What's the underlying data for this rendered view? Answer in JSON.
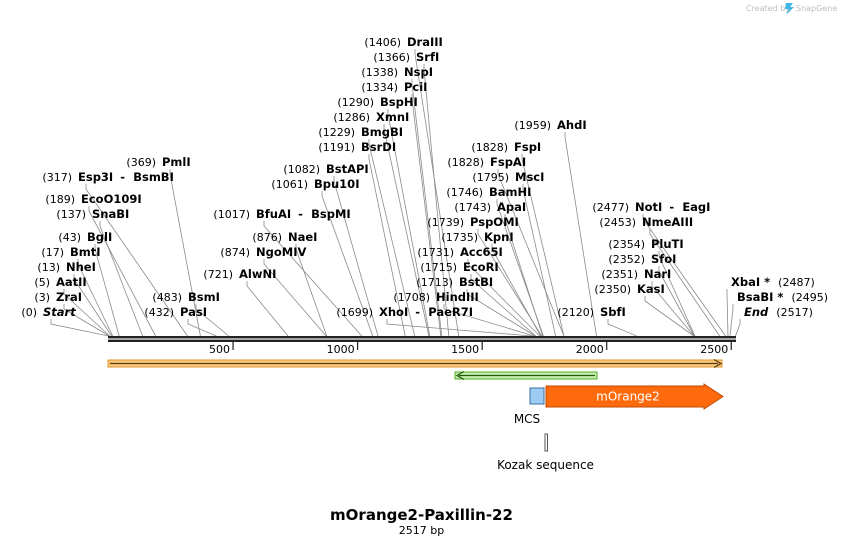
{
  "created_by": "Created by",
  "brand": "SnapGene",
  "title": "mOrange2-Paxillin-22",
  "subtitle": "2517 bp",
  "sequence_length": 2517,
  "ruler_ticks": [
    {
      "value": 500,
      "label": "500"
    },
    {
      "value": 1000,
      "label": "1000"
    },
    {
      "value": 1500,
      "label": "1500"
    },
    {
      "value": 2000,
      "label": "2000"
    },
    {
      "value": 2500,
      "label": "2500"
    }
  ],
  "cut_sites": [
    {
      "pos": 0,
      "pos_label": "(0)",
      "name": "Start",
      "italic": true
    },
    {
      "pos": 3,
      "pos_label": "(3)",
      "name": "ZraI"
    },
    {
      "pos": 5,
      "pos_label": "(5)",
      "name": "AatII"
    },
    {
      "pos": 13,
      "pos_label": "(13)",
      "name": "NheI"
    },
    {
      "pos": 17,
      "pos_label": "(17)",
      "name": "BmtI"
    },
    {
      "pos": 43,
      "pos_label": "(43)",
      "name": "BglI"
    },
    {
      "pos": 137,
      "pos_label": "(137)",
      "name": "SnaBI"
    },
    {
      "pos": 189,
      "pos_label": "(189)",
      "name": "EcoO109I"
    },
    {
      "pos": 317,
      "pos_label": "(317)",
      "name": "Esp3I",
      "name2": "BsmBI"
    },
    {
      "pos": 369,
      "pos_label": "(369)",
      "name": "PmlI"
    },
    {
      "pos": 432,
      "pos_label": "(432)",
      "name": "PasI"
    },
    {
      "pos": 483,
      "pos_label": "(483)",
      "name": "BsmI"
    },
    {
      "pos": 721,
      "pos_label": "(721)",
      "name": "AlwNI"
    },
    {
      "pos": 874,
      "pos_label": "(874)",
      "name": "NgoMIV"
    },
    {
      "pos": 876,
      "pos_label": "(876)",
      "name": "NaeI"
    },
    {
      "pos": 1017,
      "pos_label": "(1017)",
      "name": "BfuAI",
      "name2": "BspMI"
    },
    {
      "pos": 1061,
      "pos_label": "(1061)",
      "name": "Bpu10I"
    },
    {
      "pos": 1082,
      "pos_label": "(1082)",
      "name": "BstAPI"
    },
    {
      "pos": 1191,
      "pos_label": "(1191)",
      "name": "BsrDI"
    },
    {
      "pos": 1229,
      "pos_label": "(1229)",
      "name": "BmgBI"
    },
    {
      "pos": 1286,
      "pos_label": "(1286)",
      "name": "XmnI"
    },
    {
      "pos": 1290,
      "pos_label": "(1290)",
      "name": "BspHI"
    },
    {
      "pos": 1334,
      "pos_label": "(1334)",
      "name": "PciI"
    },
    {
      "pos": 1338,
      "pos_label": "(1338)",
      "name": "NspI"
    },
    {
      "pos": 1366,
      "pos_label": "(1366)",
      "name": "SrfI"
    },
    {
      "pos": 1406,
      "pos_label": "(1406)",
      "name": "DraIII"
    },
    {
      "pos": 1699,
      "pos_label": "(1699)",
      "name": "XhoI",
      "name2": "PaeR7I"
    },
    {
      "pos": 1708,
      "pos_label": "(1708)",
      "name": "HindIII"
    },
    {
      "pos": 1713,
      "pos_label": "(1713)",
      "name": "BstBI"
    },
    {
      "pos": 1715,
      "pos_label": "(1715)",
      "name": "EcoRI"
    },
    {
      "pos": 1731,
      "pos_label": "(1731)",
      "name": "Acc65I"
    },
    {
      "pos": 1735,
      "pos_label": "(1735)",
      "name": "KpnI"
    },
    {
      "pos": 1739,
      "pos_label": "(1739)",
      "name": "PspOMI"
    },
    {
      "pos": 1743,
      "pos_label": "(1743)",
      "name": "ApaI"
    },
    {
      "pos": 1746,
      "pos_label": "(1746)",
      "name": "BamHI"
    },
    {
      "pos": 1795,
      "pos_label": "(1795)",
      "name": "MscI"
    },
    {
      "pos": 1828,
      "pos_label": "(1828)",
      "name": "FspAI"
    },
    {
      "pos": 1828,
      "pos_label": "(1828)",
      "name": "FspI"
    },
    {
      "pos": 1959,
      "pos_label": "(1959)",
      "name": "AhdI"
    },
    {
      "pos": 2120,
      "pos_label": "(2120)",
      "name": "SbfI"
    },
    {
      "pos": 2350,
      "pos_label": "(2350)",
      "name": "KasI"
    },
    {
      "pos": 2351,
      "pos_label": "(2351)",
      "name": "NarI"
    },
    {
      "pos": 2352,
      "pos_label": "(2352)",
      "name": "SfoI"
    },
    {
      "pos": 2354,
      "pos_label": "(2354)",
      "name": "PluTI"
    },
    {
      "pos": 2453,
      "pos_label": "(2453)",
      "name": "NmeAIII"
    },
    {
      "pos": 2477,
      "pos_label": "(2477)",
      "name": "NotI",
      "name2": "EagI"
    },
    {
      "pos": 2487,
      "pos_label": "(2487)",
      "name": "XbaI *"
    },
    {
      "pos": 2495,
      "pos_label": "(2495)",
      "name": "BsaBI *"
    },
    {
      "pos": 2517,
      "pos_label": "(2517)",
      "name": "End",
      "italic": true
    }
  ],
  "features": [
    {
      "name": "vector-span",
      "label": "",
      "start": 1,
      "end": 2517,
      "color": "#f5a623"
    },
    {
      "name": "green-feature",
      "label": "",
      "start": 1410,
      "end": 2000,
      "color": "#4caf20"
    },
    {
      "name": "MCS",
      "label": "MCS",
      "start": 1708,
      "end": 1760,
      "color": "#9ecbf2"
    },
    {
      "name": "mOrange2",
      "label": "mOrange2",
      "start": 1770,
      "end": 2517,
      "color": "#ff6a0d"
    },
    {
      "name": "Kozak sequence",
      "label": "Kozak sequence",
      "start": 1760,
      "end": 1770,
      "color": "#888888"
    }
  ],
  "colors": {
    "brand_icon": "#3db4e6",
    "backbone": "#222222",
    "leader": "#888888"
  }
}
